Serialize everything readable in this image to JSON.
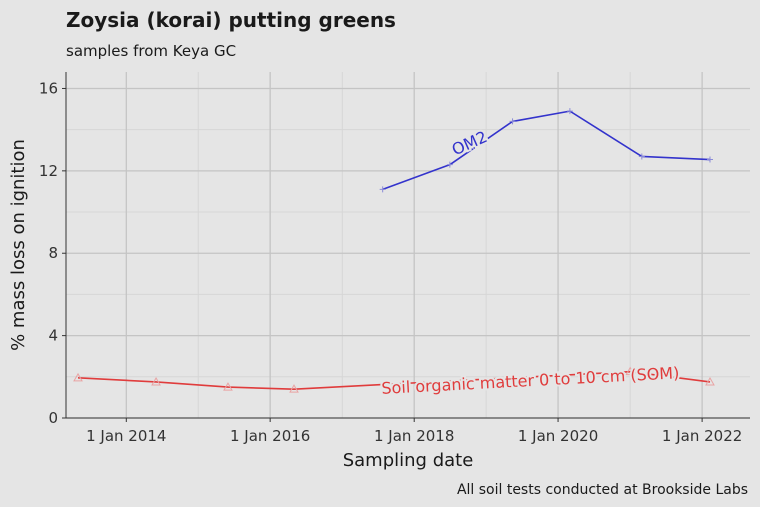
{
  "chart_data": {
    "type": "line",
    "title": "Zoysia (korai) putting greens",
    "subtitle": "samples from Keya GC",
    "xlabel": "Sampling date",
    "ylabel": "% mass loss on ignition",
    "caption": "All soil tests conducted at Brookside Labs",
    "xlim": [
      "2013-03-01",
      "2022-09-01"
    ],
    "ylim": [
      0,
      16.8
    ],
    "x_ticks": [
      {
        "date": "2014-01-01",
        "label": "1 Jan 2014"
      },
      {
        "date": "2016-01-01",
        "label": "1 Jan 2016"
      },
      {
        "date": "2018-01-01",
        "label": "1 Jan 2018"
      },
      {
        "date": "2020-01-01",
        "label": "1 Jan 2020"
      },
      {
        "date": "2022-01-01",
        "label": "1 Jan 2022"
      }
    ],
    "x_minor_ticks": [
      "2013-01-01",
      "2015-01-01",
      "2017-01-01",
      "2019-01-01",
      "2021-01-01"
    ],
    "y_ticks": [
      0,
      4,
      8,
      12,
      16
    ],
    "grid": true,
    "series": [
      {
        "name": "OM2",
        "color": "#3333cc",
        "marker": "plus",
        "label_position": {
          "date": "2018-10-20",
          "value": 13.1,
          "angle": -24
        },
        "points": [
          {
            "x": "2017-07-25",
            "y": 11.1
          },
          {
            "x": "2018-07-01",
            "y": 12.3
          },
          {
            "x": "2019-05-15",
            "y": 14.4
          },
          {
            "x": "2020-03-01",
            "y": 14.9
          },
          {
            "x": "2021-03-01",
            "y": 12.7
          },
          {
            "x": "2022-02-10",
            "y": 12.55
          }
        ]
      },
      {
        "name": "Soil organic matter 0 to 10 cm (SOM)",
        "color": "#e03c3c",
        "marker": "triangle",
        "label_position": {
          "date": "2019-08-15",
          "value": 1.55,
          "angle": -3
        },
        "points": [
          {
            "x": "2013-05-01",
            "y": 1.95
          },
          {
            "x": "2014-06-01",
            "y": 1.75
          },
          {
            "x": "2015-06-01",
            "y": 1.5
          },
          {
            "x": "2016-05-01",
            "y": 1.4
          },
          {
            "x": "2021-01-01",
            "y": 2.25
          },
          {
            "x": "2022-02-10",
            "y": 1.75
          }
        ]
      }
    ]
  }
}
